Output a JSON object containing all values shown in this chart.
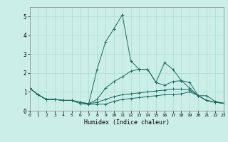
{
  "xlabel": "Humidex (Indice chaleur)",
  "background_color": "#cceee8",
  "grid_color": "#aaddcc",
  "line_color": "#1a6b5e",
  "x_values": [
    0,
    1,
    2,
    3,
    4,
    5,
    6,
    7,
    8,
    9,
    10,
    11,
    12,
    13,
    14,
    15,
    16,
    17,
    18,
    19,
    20,
    21,
    22,
    23
  ],
  "series": [
    [
      1.2,
      0.85,
      0.6,
      0.6,
      0.55,
      0.55,
      0.45,
      0.35,
      0.35,
      0.35,
      0.5,
      0.6,
      0.65,
      0.7,
      0.75,
      0.8,
      0.85,
      0.85,
      0.9,
      1.0,
      0.8,
      0.55,
      0.45,
      0.4
    ],
    [
      1.2,
      0.85,
      0.6,
      0.6,
      0.55,
      0.55,
      0.45,
      0.38,
      0.45,
      0.6,
      0.75,
      0.85,
      0.9,
      0.95,
      1.0,
      1.05,
      1.1,
      1.15,
      1.15,
      1.1,
      0.8,
      0.55,
      0.45,
      0.4
    ],
    [
      1.2,
      0.85,
      0.6,
      0.6,
      0.55,
      0.55,
      0.45,
      0.38,
      0.6,
      1.2,
      1.55,
      1.8,
      2.1,
      2.2,
      2.2,
      1.5,
      1.35,
      1.55,
      1.6,
      1.5,
      0.8,
      0.55,
      0.45,
      0.4
    ],
    [
      1.2,
      0.85,
      0.6,
      0.6,
      0.55,
      0.55,
      0.38,
      0.35,
      2.2,
      3.65,
      4.35,
      5.1,
      2.65,
      2.2,
      2.2,
      1.5,
      2.55,
      2.2,
      1.6,
      1.2,
      0.8,
      0.8,
      0.5,
      0.4
    ]
  ],
  "xlim": [
    0,
    23
  ],
  "ylim": [
    0,
    5.5
  ],
  "yticks": [
    0,
    1,
    2,
    3,
    4,
    5
  ],
  "figsize": [
    3.2,
    2.0
  ],
  "dpi": 100
}
